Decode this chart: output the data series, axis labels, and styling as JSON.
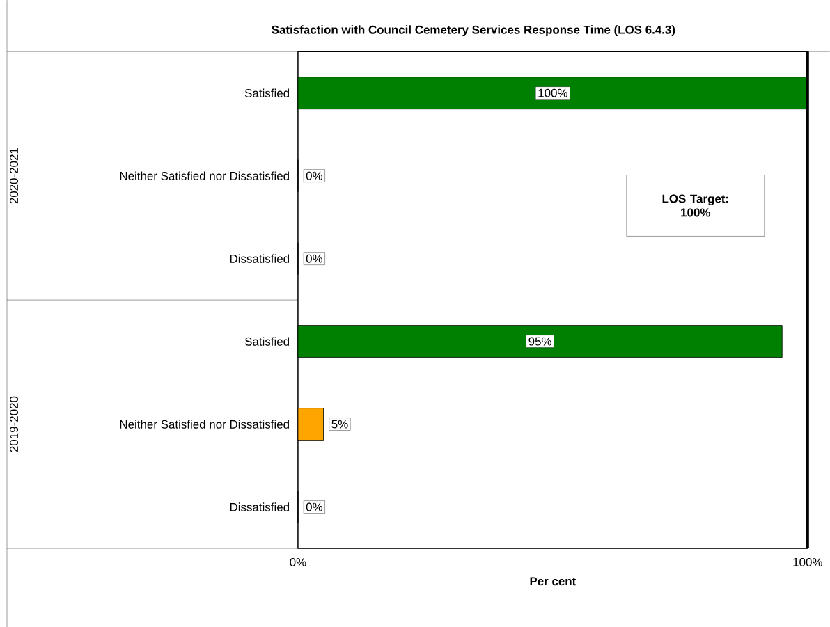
{
  "chart_data": {
    "type": "bar",
    "orientation": "horizontal",
    "title": "Satisfaction with Council Cemetery Services Response Time (LOS 6.4.3)",
    "xlabel": "Per cent",
    "categories": [
      "Satisfied",
      "Neither Satisfied nor Dissatisfied",
      "Dissatisfied",
      "Satisfied",
      "Neither Satisfied nor Dissatisfied",
      "Dissatisfied"
    ],
    "values": [
      100,
      0,
      0,
      95,
      5,
      0
    ],
    "colors": [
      "#008000",
      "#ffa500",
      "#ff0000",
      "#008000",
      "#ffa500",
      "#ff0000"
    ],
    "value_labels": [
      "100%",
      "0%",
      "0%",
      "95%",
      "5%",
      "0%"
    ],
    "xlim": [
      0,
      100
    ],
    "xticks": [
      {
        "value": 0,
        "label": "0%"
      },
      {
        "value": 100,
        "label": "100%"
      }
    ],
    "ref_lines": [
      {
        "axis": "x",
        "value": 100,
        "label": "**LOS Target: 100%**",
        "color": "#000000"
      }
    ],
    "annotations": [
      "2020-2021",
      "2019-2020"
    ],
    "grid": false
  }
}
